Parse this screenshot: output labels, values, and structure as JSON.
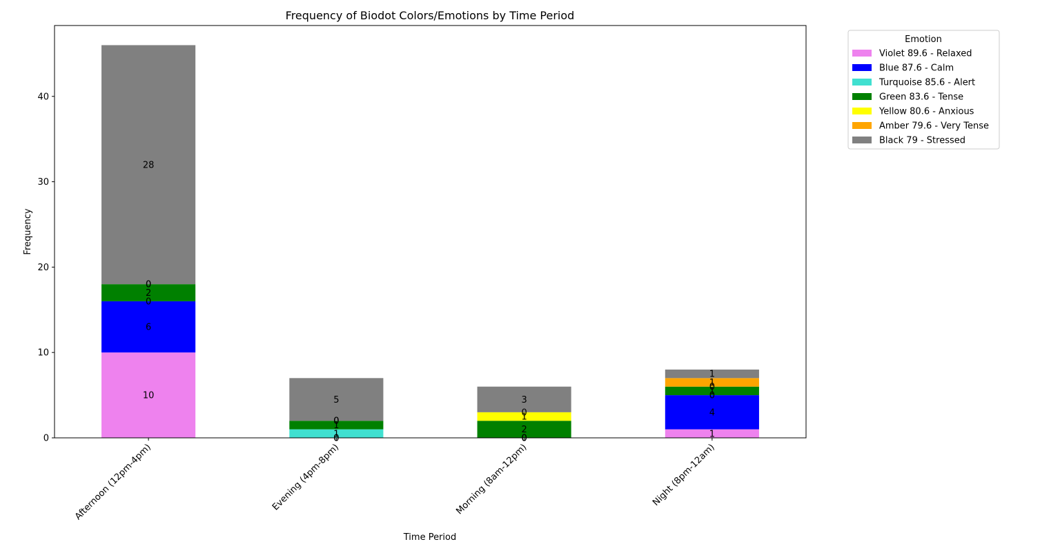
{
  "chart_data": {
    "type": "bar",
    "stacked": true,
    "title": "Frequency of Biodot Colors/Emotions by Time Period",
    "xlabel": "Time Period",
    "ylabel": "Frequency",
    "ylim": [
      0,
      48.3
    ],
    "yticks": [
      0,
      10,
      20,
      30,
      40
    ],
    "categories": [
      "Afternoon (12pm-4pm)",
      "Evening (4pm-8pm)",
      "Morning (8am-12pm)",
      "Night (8pm-12am)"
    ],
    "series": [
      {
        "name": "Violet 89.6 - Relaxed",
        "color": "#ee82ee",
        "values": [
          10,
          0,
          0,
          1
        ]
      },
      {
        "name": "Blue 87.6 - Calm",
        "color": "#0000ff",
        "values": [
          6,
          0,
          0,
          4
        ]
      },
      {
        "name": "Turquoise 85.6 - Alert",
        "color": "#40e0d0",
        "values": [
          0,
          1,
          0,
          0
        ]
      },
      {
        "name": "Green 83.6 - Tense",
        "color": "#008000",
        "values": [
          2,
          1,
          2,
          1
        ]
      },
      {
        "name": "Yellow 80.6 - Anxious",
        "color": "#ffff00",
        "values": [
          0,
          0,
          1,
          0
        ]
      },
      {
        "name": "Amber 79.6 - Very Tense",
        "color": "#ffa500",
        "values": [
          0,
          0,
          0,
          1
        ]
      },
      {
        "name": "Black 79 - Stressed",
        "color": "#808080",
        "values": [
          28,
          5,
          3,
          1
        ]
      }
    ],
    "legend": {
      "title": "Emotion",
      "placement": "outside-upper-right"
    },
    "grid": false
  }
}
